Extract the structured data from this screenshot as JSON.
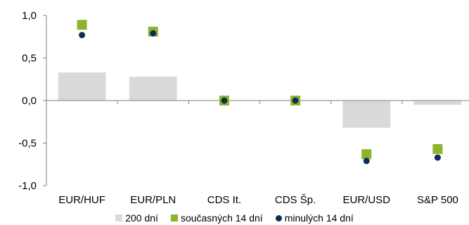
{
  "chart_data": {
    "type": "bar",
    "categories": [
      "EUR/HUF",
      "EUR/PLN",
      "CDS It.",
      "CDS Šp.",
      "EUR/USD",
      "S&P 500"
    ],
    "series": [
      {
        "name": "200 dní",
        "kind": "bar",
        "color": "#d9d9d9",
        "values": [
          0.33,
          0.28,
          0.0,
          0.0,
          -0.32,
          -0.05
        ]
      },
      {
        "name": "současných 14 dní",
        "kind": "square-marker",
        "color": "#8db42c",
        "values": [
          0.89,
          0.81,
          0.0,
          0.0,
          -0.63,
          -0.57
        ]
      },
      {
        "name": "minulých 14 dní",
        "kind": "dot-marker",
        "color": "#0b2d5a",
        "values": [
          0.77,
          0.79,
          0.0,
          0.0,
          -0.71,
          -0.67
        ]
      }
    ],
    "ylim": [
      -1.0,
      1.0
    ],
    "yticks": [
      "1,0",
      "0,5",
      "0,0",
      "-0,5",
      "-1,0"
    ],
    "grid": false,
    "legend_position": "bottom"
  }
}
